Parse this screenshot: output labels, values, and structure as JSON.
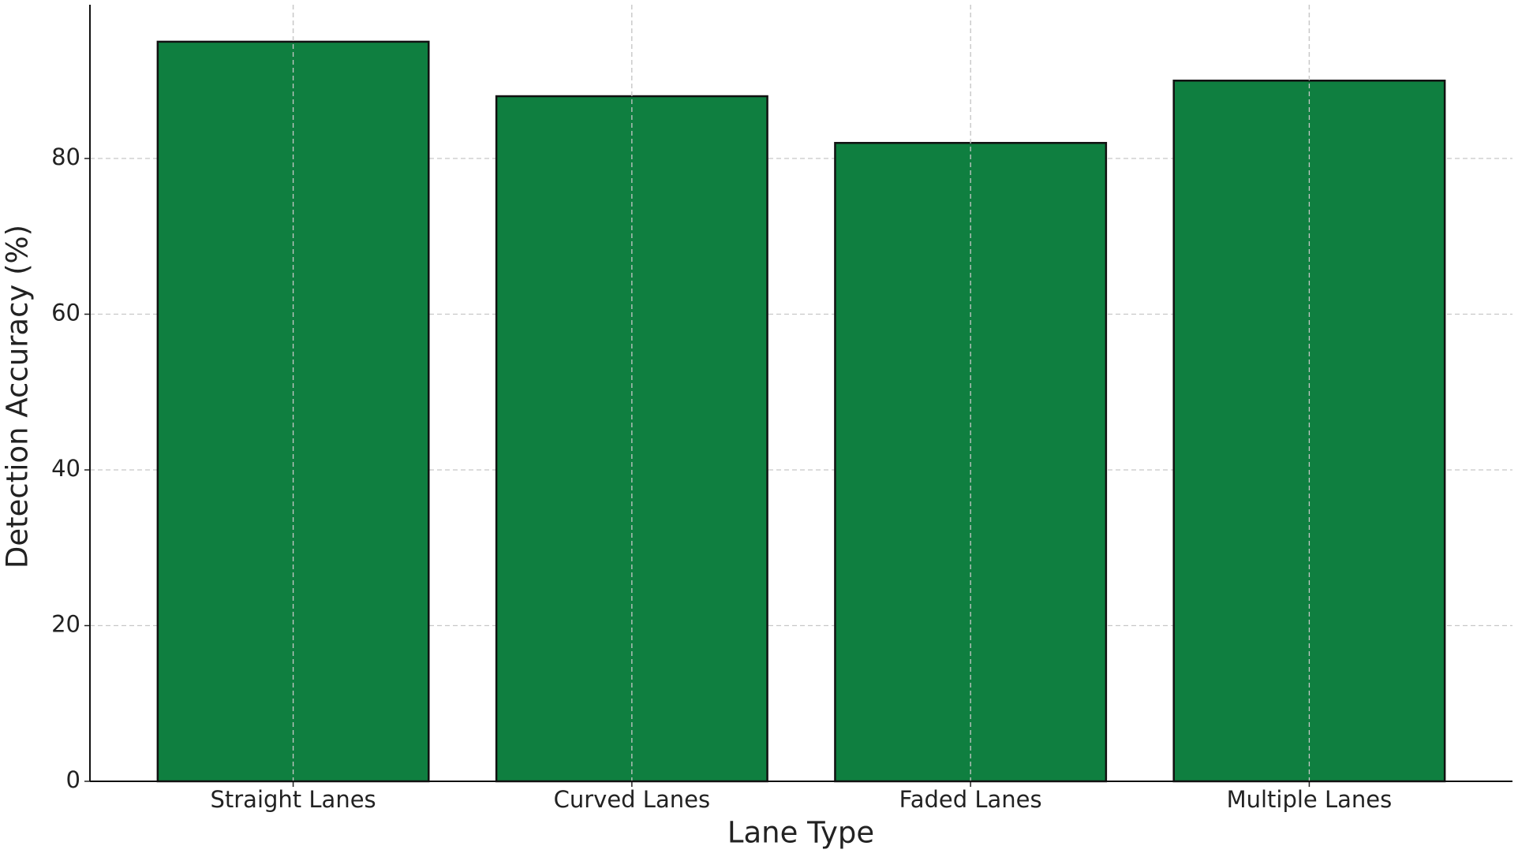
{
  "chart_data": {
    "type": "bar",
    "x_label": "Lane Type",
    "y_label": "Detection Accuracy (%)",
    "categories": [
      "Straight Lanes",
      "Curved Lanes",
      "Faded Lanes",
      "Multiple Lanes"
    ],
    "values": [
      95,
      88,
      82,
      90
    ],
    "color": "#0f7f40",
    "ylim": [
      0,
      99.75
    ],
    "yticks": [
      0,
      20,
      40,
      60,
      80
    ],
    "grid": true
  }
}
